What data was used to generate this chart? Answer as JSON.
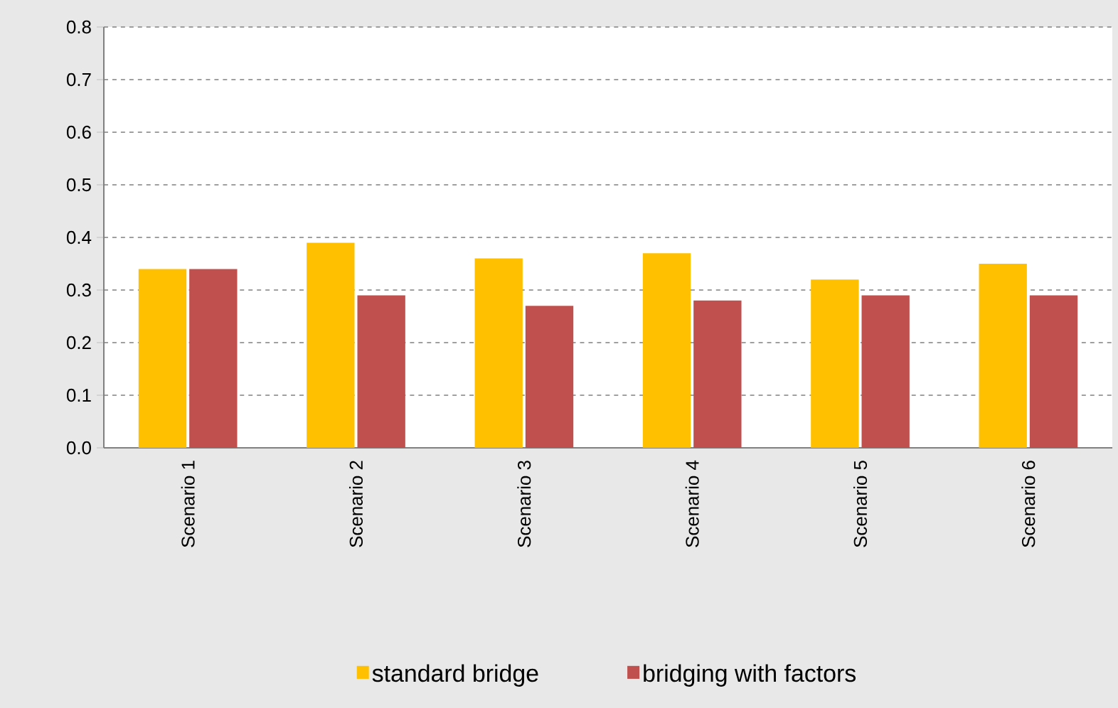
{
  "chart_data": {
    "type": "bar",
    "categories": [
      "Scenario 1",
      "Scenario 2",
      "Scenario 3",
      "Scenario 4",
      "Scenario 5",
      "Scenario 6"
    ],
    "series": [
      {
        "name": "standard bridge",
        "color": "#ffc000",
        "values": [
          0.34,
          0.39,
          0.36,
          0.37,
          0.32,
          0.35
        ]
      },
      {
        "name": "bridging with factors",
        "color": "#c0504d",
        "values": [
          0.34,
          0.29,
          0.27,
          0.28,
          0.29,
          0.29
        ]
      }
    ],
    "ylim": [
      0,
      0.8
    ],
    "yticks": [
      {
        "value": 0,
        "label": "0.0"
      },
      0.1,
      0.2,
      0.3,
      0.4,
      0.5,
      0.6,
      0.7,
      0.8
    ],
    "grid": "y",
    "legend": "bottom"
  }
}
